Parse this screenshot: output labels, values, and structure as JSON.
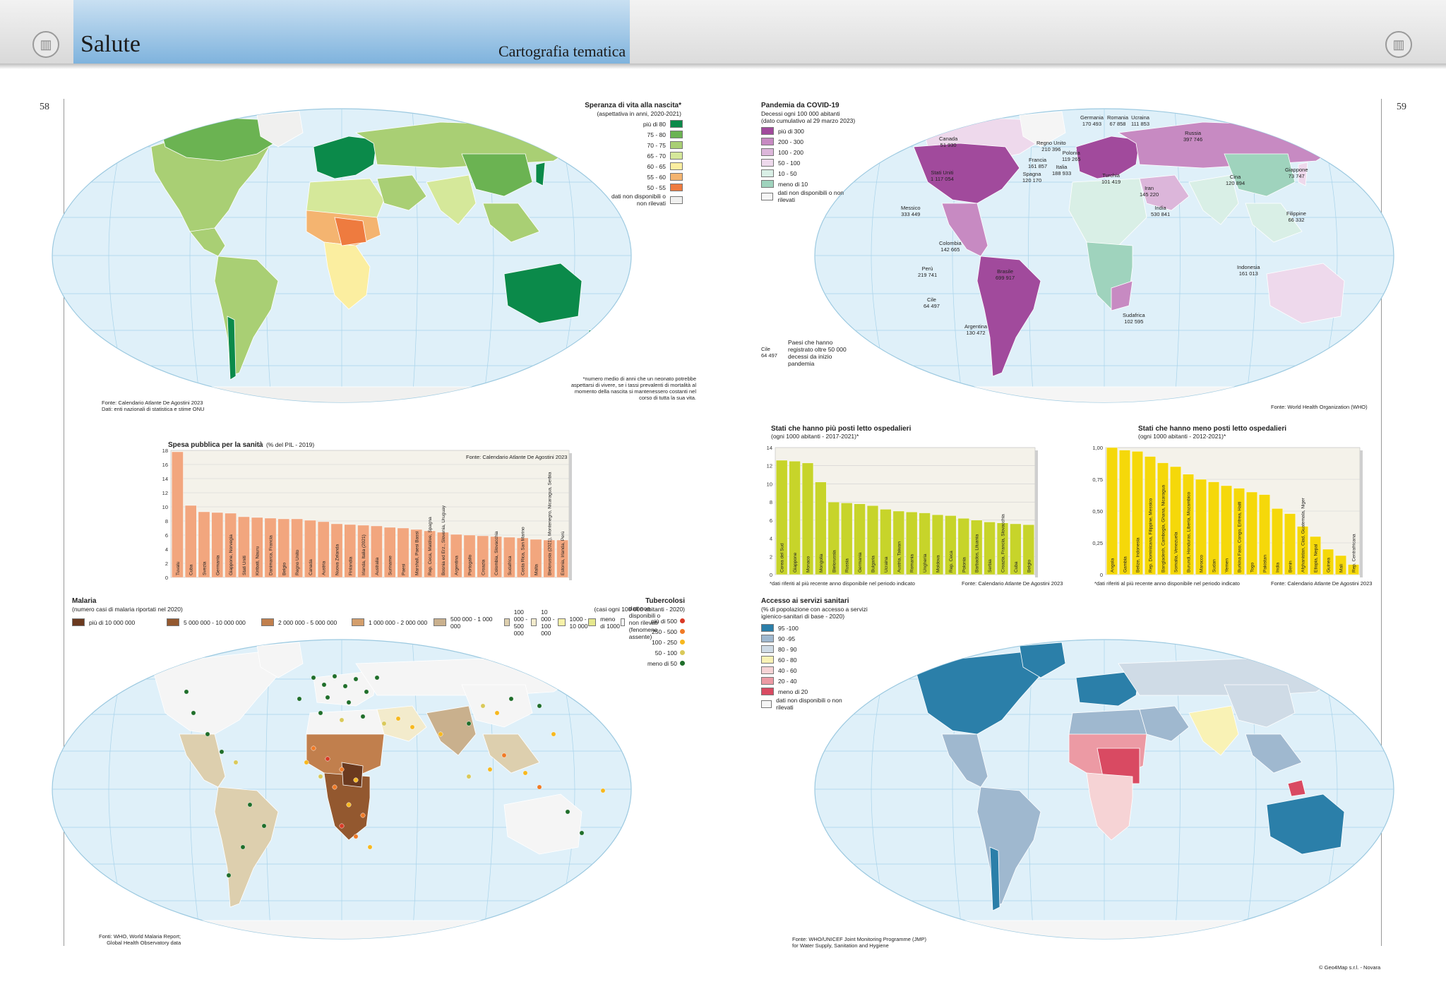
{
  "header": {
    "title": "Salute",
    "subtitle": "Cartografia tematica"
  },
  "pages": {
    "left": "58",
    "right": "59"
  },
  "life_map": {
    "title": "Speranza di vita alla nascita*",
    "subtitle": "(aspettativa in anni, 2020-2021)",
    "legend": [
      {
        "label": "più di 80",
        "color": "#0b8a4a"
      },
      {
        "label": "75 - 80",
        "color": "#6bb352"
      },
      {
        "label": "70 - 75",
        "color": "#a9cf74"
      },
      {
        "label": "65 - 70",
        "color": "#d5e89a"
      },
      {
        "label": "60 - 65",
        "color": "#fbeea0"
      },
      {
        "label": "55 - 60",
        "color": "#f4b470"
      },
      {
        "label": "50 - 55",
        "color": "#ee7b3f"
      },
      {
        "label": "dati non disponibili o non rilevati",
        "color": "#f0f0ef"
      }
    ],
    "note": "*numero medio di anni che un neonato potrebbe aspettarsi di vivere, se i tassi prevalenti di mortalità al momento della nascita si mantenessero costanti nel corso di tutta la sua vita.",
    "source_1": "Fonte: Calendario Atlante De Agostini 2023",
    "source_2": "Dati: enti nazionali di statistica e stime ONU"
  },
  "covid_map": {
    "title": "Pandemia da COVID-19",
    "subtitle_1": "Decessi ogni 100 000 abitanti",
    "subtitle_2": "(dato cumulativo al 29 marzo 2023)",
    "legend": [
      {
        "label": "più di 300",
        "color": "#a14a9c"
      },
      {
        "label": "200 - 300",
        "color": "#c78ac2"
      },
      {
        "label": "100 - 200",
        "color": "#dcb6da"
      },
      {
        "label": "50 - 100",
        "color": "#eed9ec"
      },
      {
        "label": "10 - 50",
        "color": "#d9efe6"
      },
      {
        "label": "meno di 10",
        "color": "#9fd3bd"
      },
      {
        "label": "dati non disponibili o non rilevati",
        "color": "#f5f5f5"
      }
    ],
    "legend_example_label": "Cile\n64 497",
    "legend_example_text": "Paesi che hanno registrato oltre 50 000 decessi da inizio pandemia",
    "labels": [
      {
        "name": "Canada",
        "value": "51 930"
      },
      {
        "name": "Stati Uniti",
        "value": "1 117 054"
      },
      {
        "name": "Messico",
        "value": "333 449"
      },
      {
        "name": "Colombia",
        "value": "142 665"
      },
      {
        "name": "Perù",
        "value": "219 741"
      },
      {
        "name": "Brasile",
        "value": "699 917"
      },
      {
        "name": "Cile",
        "value": "64 497"
      },
      {
        "name": "Argentina",
        "value": "130 472"
      },
      {
        "name": "Regno Unito",
        "value": "210 396"
      },
      {
        "name": "Francia",
        "value": "161 857"
      },
      {
        "name": "Spagna",
        "value": "120 170"
      },
      {
        "name": "Germania",
        "value": "170 493"
      },
      {
        "name": "Romania",
        "value": "67 858"
      },
      {
        "name": "Ucraina",
        "value": "111 853"
      },
      {
        "name": "Polonia",
        "value": "119 265"
      },
      {
        "name": "Italia",
        "value": "188 933"
      },
      {
        "name": "Turchia",
        "value": "101 419"
      },
      {
        "name": "Russia",
        "value": "397 746"
      },
      {
        "name": "Iran",
        "value": "145 220"
      },
      {
        "name": "India",
        "value": "530 841"
      },
      {
        "name": "Cina",
        "value": "120 894"
      },
      {
        "name": "Giappone",
        "value": "73 747"
      },
      {
        "name": "Filippine",
        "value": "66 332"
      },
      {
        "name": "Indonesia",
        "value": "161 013"
      },
      {
        "name": "Sudafrica",
        "value": "102 595"
      }
    ],
    "source": "Fonte: World Health Organization (WHO)"
  },
  "spending_chart": {
    "title": "Spesa pubblica per la sanità",
    "subtitle": "(% del PIL - 2019)",
    "source": "Fonte: Calendario Atlante De Agostini 2023",
    "chart_data": {
      "type": "bar",
      "title": "Spesa pubblica per la sanità (% del PIL - 2019)",
      "ylim": [
        0,
        18
      ],
      "yticks": [
        0,
        2,
        4,
        6,
        8,
        10,
        12,
        14,
        16,
        18
      ],
      "categories": [
        "Tuvalu",
        "Cuba",
        "Svezia",
        "Germania",
        "Giappone, Norvegia",
        "Stati Uniti",
        "Kiribati, Nauru",
        "Danimarca, Francia",
        "Belgio",
        "Regno Unito",
        "Canada",
        "Austria",
        "Nuova Zelanda",
        "Finlandia",
        "Irlanda, Italia (2021)",
        "Australia",
        "Suriname",
        "Paesi",
        "Marshall, Paesi Bassi",
        "Rep. Ceca, Maldive, Spagna",
        "Bosnia ed Erz., Slovenia, Uruguay",
        "Argentina",
        "Portogallo",
        "Croazia",
        "Colombia, Slovacchia",
        "Sudafrica",
        "Costa Rica, San Marino",
        "Malta",
        "Bielorussia (2021), Montenegro, Nicaragua, Serbia",
        "Estonia, Irlanda, Perù"
      ],
      "values": [
        17.8,
        10.2,
        9.3,
        9.2,
        9.1,
        8.6,
        8.5,
        8.4,
        8.3,
        8.3,
        8.1,
        7.9,
        7.6,
        7.5,
        7.4,
        7.3,
        7.1,
        7.0,
        6.8,
        6.6,
        6.4,
        6.1,
        6.0,
        5.9,
        5.8,
        5.7,
        5.6,
        5.4,
        5.3,
        5.3
      ],
      "color": "#f2a67e"
    }
  },
  "beds_most_chart": {
    "title": "Stati che hanno più posti letto ospedalieri",
    "subtitle": "(ogni 1000 abitanti - 2017-2021)*",
    "note": "*dati riferiti al più recente anno disponibile nel periodo indicato",
    "source": "Fonte: Calendario Atlante De Agostini 2023",
    "chart_data": {
      "type": "bar",
      "title": "Stati che hanno più posti letto ospedalieri (ogni 1000 abitanti - 2017-2021)*",
      "ylim": [
        0,
        14
      ],
      "yticks": [
        0,
        2,
        4,
        6,
        8,
        10,
        12,
        14
      ],
      "categories": [
        "Corea del Sud",
        "Giappone",
        "Monaco",
        "Mongolia",
        "Bielorussia",
        "Russia",
        "Germania",
        "Bulgaria",
        "Ucraina",
        "Austria, Taiwan",
        "Romania",
        "Ungheria",
        "Moldova",
        "Rep. Ceca",
        "Polonia",
        "Barbados, Lituania",
        "Serbia",
        "Croazia, Francia, Slovacchia",
        "Cuba",
        "Belgio"
      ],
      "values": [
        12.6,
        12.5,
        12.3,
        10.2,
        8.0,
        7.9,
        7.8,
        7.6,
        7.2,
        7.0,
        6.9,
        6.8,
        6.6,
        6.5,
        6.2,
        6.0,
        5.8,
        5.7,
        5.6,
        5.5
      ],
      "color": "#c7d42a"
    }
  },
  "beds_least_chart": {
    "title": "Stati che hanno meno posti letto ospedalieri",
    "subtitle": "(ogni 1000 abitanti - 2012-2021)*",
    "note": "*dati riferiti al più recente anno disponibile nel periodo indicato",
    "source": "Fonte: Calendario Atlante De Agostini 2023",
    "chart_data": {
      "type": "bar",
      "title": "Stati che hanno meno posti letto ospedalieri (ogni 1000 abitanti - 2012-2021)*",
      "ylim": [
        0,
        1.0
      ],
      "yticks": [
        0,
        0.25,
        0.5,
        0.75,
        1.0
      ],
      "ytick_labels": [
        "0",
        "0,25",
        "0,50",
        "0,75",
        "1,00"
      ],
      "categories": [
        "Angola",
        "Gambia",
        "Belize, Indonesia",
        "Rep. Dominicana, Filippine, Messico",
        "Bangladesh, Cambogia, Ghana, Nicaragua",
        "Somalia, Venezuela",
        "Burundi, Honduras, Liberia, Mozambico",
        "Marocco",
        "Sudan",
        "Yemen",
        "Burkina Faso, Congo, Eritrea, Haiti",
        "Togo",
        "Pakistan",
        "India",
        "Benin",
        "Afghanistan, Ciad, Guatemala, Niger",
        "Etiopia, Nepal",
        "Guinea",
        "Mali",
        "Rep. Centrafricana"
      ],
      "values": [
        1.0,
        0.98,
        0.97,
        0.93,
        0.88,
        0.85,
        0.79,
        0.75,
        0.73,
        0.7,
        0.68,
        0.65,
        0.63,
        0.52,
        0.48,
        0.38,
        0.3,
        0.2,
        0.15,
        0.08
      ],
      "color": "#f5d80a"
    }
  },
  "malaria_map": {
    "title": "Malaria",
    "subtitle": "(numero casi di malaria riportati nel 2020)",
    "legend": [
      {
        "label": "più di 10 000 000",
        "color": "#6b3a1f"
      },
      {
        "label": "5 000 000 - 10 000 000",
        "color": "#93582f"
      },
      {
        "label": "2 000 000 - 5 000 000",
        "color": "#c17f4d"
      },
      {
        "label": "1 000 000 - 2 000 000",
        "color": "#d39e6c"
      },
      {
        "label": "500 000 - 1 000 000",
        "color": "#c9b08d"
      },
      {
        "label": "100 000 - 500 000",
        "color": "#ddcfae"
      },
      {
        "label": "10 000 - 100 000",
        "color": "#f3ebcc"
      },
      {
        "label": "1000 - 10 000",
        "color": "#f8f2a8"
      },
      {
        "label": "meno di 1000",
        "color": "#e6e88d"
      },
      {
        "label": "dati non disponibili o non rilevati (fenomeno assente)",
        "color": "#f5f5f5"
      }
    ],
    "tb_title": "Tubercolosi",
    "tb_subtitle": "(casi ogni 100 000 abitanti - 2020)",
    "tb_legend": [
      {
        "label": "più di 500",
        "color": "#d93a26"
      },
      {
        "label": "250 - 500",
        "color": "#f07a26"
      },
      {
        "label": "100 - 250",
        "color": "#f7b81e"
      },
      {
        "label": "50 - 100",
        "color": "#d9c95a"
      },
      {
        "label": "meno di 50",
        "color": "#1f6e2a"
      }
    ],
    "source_1": "Fonti: WHO, World Malaria Report;",
    "source_2": "Global Health Observatory data"
  },
  "sanitation_map": {
    "title": "Accesso ai servizi sanitari",
    "subtitle_1": "(% di popolazione con accesso a servizi",
    "subtitle_2": "igienico-sanitari di base - 2020)",
    "legend": [
      {
        "label": "95 -100",
        "color": "#2b7fa9"
      },
      {
        "label": "90 -95",
        "color": "#9fb8cf"
      },
      {
        "label": "80 - 90",
        "color": "#cfdbe6"
      },
      {
        "label": "60 - 80",
        "color": "#f9f2b5"
      },
      {
        "label": "40 - 60",
        "color": "#f6d3d5"
      },
      {
        "label": "20 - 40",
        "color": "#ec9aa4"
      },
      {
        "label": "meno di 20",
        "color": "#d94a62"
      },
      {
        "label": "dati non disponibili o non rilevati",
        "color": "#f5f5f5"
      }
    ],
    "source_1": "Fonte: WHO/UNICEF Joint Monitoring Programme (JMP)",
    "source_2": "for Water Supply, Sanitation and Hygiene"
  },
  "copyright": "© Geo4Map s.r.l. - Novara"
}
